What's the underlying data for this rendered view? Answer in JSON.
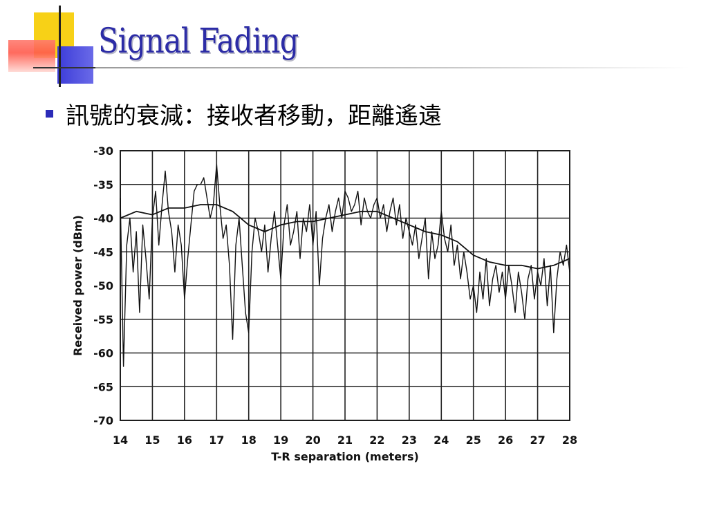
{
  "slide": {
    "title": "Signal Fading",
    "bullet": "訊號的衰減：接收者移動，距離遙遠"
  },
  "colors": {
    "title": "#2c2ca6",
    "bullet": "#2b2bb8",
    "plot_line": "#111111"
  },
  "chart_data": {
    "type": "line",
    "title": "",
    "xlabel": "T-R separation (meters)",
    "ylabel": "Received power (dBm)",
    "xlim": [
      14,
      28
    ],
    "ylim": [
      -70,
      -30
    ],
    "xticks": [
      14,
      15,
      16,
      17,
      18,
      19,
      20,
      21,
      22,
      23,
      24,
      25,
      26,
      27,
      28
    ],
    "yticks": [
      -30,
      -35,
      -40,
      -45,
      -50,
      -55,
      -60,
      -65,
      -70
    ],
    "grid": true,
    "legend": "none",
    "series": [
      {
        "role": "received-power",
        "x": [
          14.0,
          14.1,
          14.2,
          14.3,
          14.4,
          14.5,
          14.6,
          14.7,
          14.8,
          14.9,
          15.0,
          15.1,
          15.2,
          15.3,
          15.4,
          15.5,
          15.6,
          15.7,
          15.8,
          15.9,
          16.0,
          16.1,
          16.2,
          16.3,
          16.4,
          16.5,
          16.6,
          16.7,
          16.8,
          16.9,
          17.0,
          17.1,
          17.2,
          17.3,
          17.4,
          17.5,
          17.6,
          17.7,
          17.8,
          17.9,
          18.0,
          18.1,
          18.2,
          18.3,
          18.4,
          18.5,
          18.6,
          18.7,
          18.8,
          18.9,
          19.0,
          19.1,
          19.2,
          19.3,
          19.4,
          19.5,
          19.6,
          19.7,
          19.8,
          19.9,
          20.0,
          20.1,
          20.2,
          20.3,
          20.4,
          20.5,
          20.6,
          20.7,
          20.8,
          20.9,
          21.0,
          21.1,
          21.2,
          21.3,
          21.4,
          21.5,
          21.6,
          21.7,
          21.8,
          21.9,
          22.0,
          22.1,
          22.2,
          22.3,
          22.4,
          22.5,
          22.6,
          22.7,
          22.8,
          22.9,
          23.0,
          23.1,
          23.2,
          23.3,
          23.4,
          23.5,
          23.6,
          23.7,
          23.8,
          23.9,
          24.0,
          24.1,
          24.2,
          24.3,
          24.4,
          24.5,
          24.6,
          24.7,
          24.8,
          24.9,
          25.0,
          25.1,
          25.2,
          25.3,
          25.4,
          25.5,
          25.6,
          25.7,
          25.8,
          25.9,
          26.0,
          26.1,
          26.2,
          26.3,
          26.4,
          26.5,
          26.6,
          26.7,
          26.8,
          26.9,
          27.0,
          27.1,
          27.2,
          27.3,
          27.4,
          27.5,
          27.6,
          27.7,
          27.8,
          27.9,
          28.0
        ],
        "y": [
          -37,
          -62,
          -44,
          -40,
          -48,
          -42,
          -54,
          -41,
          -46,
          -52,
          -40,
          -36,
          -44,
          -38,
          -33,
          -39,
          -42,
          -48,
          -41,
          -44,
          -52,
          -46,
          -41,
          -36,
          -35,
          -35,
          -34,
          -37,
          -40,
          -38,
          -32,
          -38,
          -43,
          -41,
          -47,
          -58,
          -44,
          -40,
          -47,
          -54,
          -57,
          -45,
          -40,
          -42,
          -45,
          -41,
          -48,
          -43,
          -39,
          -44,
          -49,
          -41,
          -38,
          -44,
          -42,
          -39,
          -46,
          -40,
          -42,
          -38,
          -44,
          -39,
          -50,
          -43,
          -40,
          -38,
          -42,
          -39,
          -37,
          -40,
          -36,
          -37,
          -39,
          -38,
          -36,
          -41,
          -37,
          -39,
          -40,
          -38,
          -37,
          -40,
          -38,
          -42,
          -39,
          -37,
          -41,
          -38,
          -43,
          -40,
          -42,
          -44,
          -41,
          -46,
          -43,
          -40,
          -49,
          -42,
          -46,
          -44,
          -39,
          -43,
          -45,
          -41,
          -47,
          -44,
          -49,
          -45,
          -48,
          -52,
          -50,
          -54,
          -48,
          -52,
          -46,
          -53,
          -49,
          -47,
          -51,
          -48,
          -52,
          -47,
          -50,
          -54,
          -48,
          -51,
          -55,
          -49,
          -47,
          -52,
          -48,
          -50,
          -46,
          -53,
          -47,
          -57,
          -49,
          -45,
          -47,
          -44,
          -48
        ]
      },
      {
        "role": "local-average",
        "x": [
          14.0,
          14.5,
          15.0,
          15.5,
          16.0,
          16.5,
          17.0,
          17.5,
          18.0,
          18.5,
          19.0,
          19.5,
          20.0,
          20.5,
          21.0,
          21.5,
          22.0,
          22.5,
          23.0,
          23.5,
          24.0,
          24.5,
          25.0,
          25.5,
          26.0,
          26.5,
          27.0,
          27.5,
          28.0
        ],
        "y": [
          -40,
          -39,
          -39.5,
          -38.5,
          -38.5,
          -38,
          -38,
          -39,
          -41,
          -42,
          -41,
          -40.5,
          -40.5,
          -40,
          -39.5,
          -39,
          -39,
          -40,
          -41,
          -42,
          -42.5,
          -43.5,
          -45.5,
          -46.5,
          -47,
          -47,
          -47.5,
          -47,
          -46
        ]
      }
    ]
  }
}
